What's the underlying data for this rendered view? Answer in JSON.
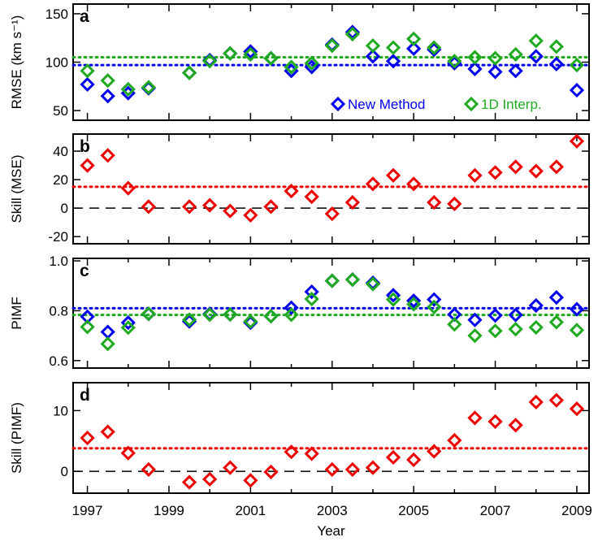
{
  "colors": {
    "new_method": "#0000ee",
    "interp_1d": "#1faa1f",
    "skill": "#ee0000",
    "axis": "#000000"
  },
  "chart_data": [
    {
      "id": "a",
      "type": "scatter",
      "panel_label": "a",
      "ylabel": "RMSE (km s⁻¹)",
      "ylim": [
        40,
        160
      ],
      "xlim": [
        1996.65,
        2009.3
      ],
      "yticks": [
        50,
        100,
        150
      ],
      "ytick_labels": [
        "50",
        "100",
        "150"
      ],
      "legend_position": "bottom-right",
      "series": [
        {
          "name": "New Method",
          "color_key": "new_method",
          "x": [
            1997.0,
            1997.5,
            1998.0,
            1998.5,
            1999.5,
            2000.0,
            2000.5,
            2001.0,
            2001.5,
            2002.0,
            2002.5,
            2003.0,
            2003.5,
            2004.0,
            2004.5,
            2005.0,
            2005.5,
            2006.0,
            2006.5,
            2007.0,
            2007.5,
            2008.0,
            2008.5,
            2009.0
          ],
          "values": [
            77,
            65,
            68,
            73,
            89,
            102,
            109,
            111,
            104,
            91,
            95,
            118,
            131,
            106,
            101,
            114,
            113,
            99,
            93,
            90,
            91,
            106,
            98,
            71
          ],
          "ref_line": 97
        },
        {
          "name": "1D Interp.",
          "color_key": "interp_1d",
          "x": [
            1997.0,
            1997.5,
            1998.0,
            1998.5,
            1999.5,
            2000.0,
            2000.5,
            2001.0,
            2001.5,
            2002.0,
            2002.5,
            2003.0,
            2003.5,
            2004.0,
            2004.5,
            2005.0,
            2005.5,
            2006.0,
            2006.5,
            2007.0,
            2007.5,
            2008.0,
            2008.5,
            2009.0
          ],
          "values": [
            91,
            81,
            72,
            74,
            89,
            101,
            109,
            108,
            104,
            95,
            99,
            117,
            129,
            117,
            115,
            124,
            115,
            101,
            105,
            104,
            108,
            122,
            116,
            97
          ],
          "ref_line": 105
        }
      ]
    },
    {
      "id": "b",
      "type": "scatter",
      "panel_label": "b",
      "ylabel": "Skill (MSE)",
      "ylim": [
        -25,
        52
      ],
      "xlim": [
        1996.65,
        2009.3
      ],
      "yticks": [
        -20,
        0,
        20,
        40
      ],
      "ytick_labels": [
        "-20",
        "0",
        "20",
        "40"
      ],
      "zero_line": 0,
      "series": [
        {
          "name": "",
          "color_key": "skill",
          "x": [
            1997.0,
            1997.5,
            1998.0,
            1998.5,
            1999.5,
            2000.0,
            2000.5,
            2001.0,
            2001.5,
            2002.0,
            2002.5,
            2003.0,
            2003.5,
            2004.0,
            2004.5,
            2005.0,
            2005.5,
            2006.0,
            2006.5,
            2007.0,
            2007.5,
            2008.0,
            2008.5,
            2009.0
          ],
          "values": [
            30,
            37,
            14,
            1,
            1,
            2,
            -2,
            -5,
            1,
            12,
            8,
            -4,
            4,
            17,
            23,
            17,
            4,
            3,
            23,
            25,
            29,
            26,
            29,
            47
          ],
          "ref_line": 15
        }
      ]
    },
    {
      "id": "c",
      "type": "scatter",
      "panel_label": "c",
      "ylabel": "PIMF",
      "ylim": [
        0.57,
        1.01
      ],
      "xlim": [
        1996.65,
        2009.3
      ],
      "yticks": [
        0.6,
        0.8,
        1.0
      ],
      "ytick_labels": [
        "0.6",
        "0.8",
        "1.0"
      ],
      "series": [
        {
          "name": "New Method",
          "color_key": "new_method",
          "x": [
            1997.0,
            1997.5,
            1998.0,
            1998.5,
            1999.5,
            2000.0,
            2000.5,
            2001.0,
            2001.5,
            2002.0,
            2002.5,
            2003.0,
            2003.5,
            2004.0,
            2004.5,
            2005.0,
            2005.5,
            2006.0,
            2006.5,
            2007.0,
            2007.5,
            2008.0,
            2008.5,
            2009.0
          ],
          "values": [
            0.776,
            0.715,
            0.752,
            0.787,
            0.757,
            0.787,
            0.785,
            0.752,
            0.778,
            0.812,
            0.876,
            0.92,
            0.925,
            0.912,
            0.862,
            0.84,
            0.845,
            0.785,
            0.763,
            0.781,
            0.783,
            0.821,
            0.853,
            0.806
          ],
          "ref_line": 0.81
        },
        {
          "name": "1D Interp.",
          "color_key": "interp_1d",
          "x": [
            1997.0,
            1997.5,
            1998.0,
            1998.5,
            1999.5,
            2000.0,
            2000.5,
            2001.0,
            2001.5,
            2002.0,
            2002.5,
            2003.0,
            2003.5,
            2004.0,
            2004.5,
            2005.0,
            2005.5,
            2006.0,
            2006.5,
            2007.0,
            2007.5,
            2008.0,
            2008.5,
            2009.0
          ],
          "values": [
            0.735,
            0.667,
            0.732,
            0.788,
            0.764,
            0.784,
            0.785,
            0.757,
            0.778,
            0.784,
            0.847,
            0.92,
            0.925,
            0.907,
            0.845,
            0.826,
            0.815,
            0.745,
            0.7,
            0.719,
            0.726,
            0.733,
            0.754,
            0.722
          ],
          "ref_line": 0.783
        }
      ]
    },
    {
      "id": "d",
      "type": "scatter",
      "panel_label": "d",
      "ylabel": "Skill (PIMF)",
      "ylim": [
        -3.6,
        14.6
      ],
      "xlim": [
        1996.65,
        2009.3
      ],
      "yticks": [
        0,
        10
      ],
      "ytick_labels": [
        "0",
        "10"
      ],
      "zero_line": 0,
      "xticks": [
        1997,
        1999,
        2001,
        2003,
        2005,
        2007,
        2009
      ],
      "xtick_labels": [
        "1997",
        "1999",
        "2001",
        "2003",
        "2005",
        "2007",
        "2009"
      ],
      "xlabel": "Year",
      "series": [
        {
          "name": "",
          "color_key": "skill",
          "x": [
            1997.0,
            1997.5,
            1998.0,
            1998.5,
            1999.5,
            2000.0,
            2000.5,
            2001.0,
            2001.5,
            2002.0,
            2002.5,
            2003.0,
            2003.5,
            2004.0,
            2004.5,
            2005.0,
            2005.5,
            2006.0,
            2006.5,
            2007.0,
            2007.5,
            2008.0,
            2008.5,
            2009.0
          ],
          "values": [
            5.5,
            6.5,
            3.0,
            0.3,
            -1.8,
            -1.3,
            0.6,
            -1.5,
            -0.1,
            3.2,
            2.9,
            0.3,
            0.3,
            0.6,
            2.3,
            1.9,
            3.3,
            5.1,
            8.8,
            8.2,
            7.6,
            11.4,
            11.7,
            10.3
          ],
          "ref_line": 3.8
        }
      ]
    }
  ]
}
